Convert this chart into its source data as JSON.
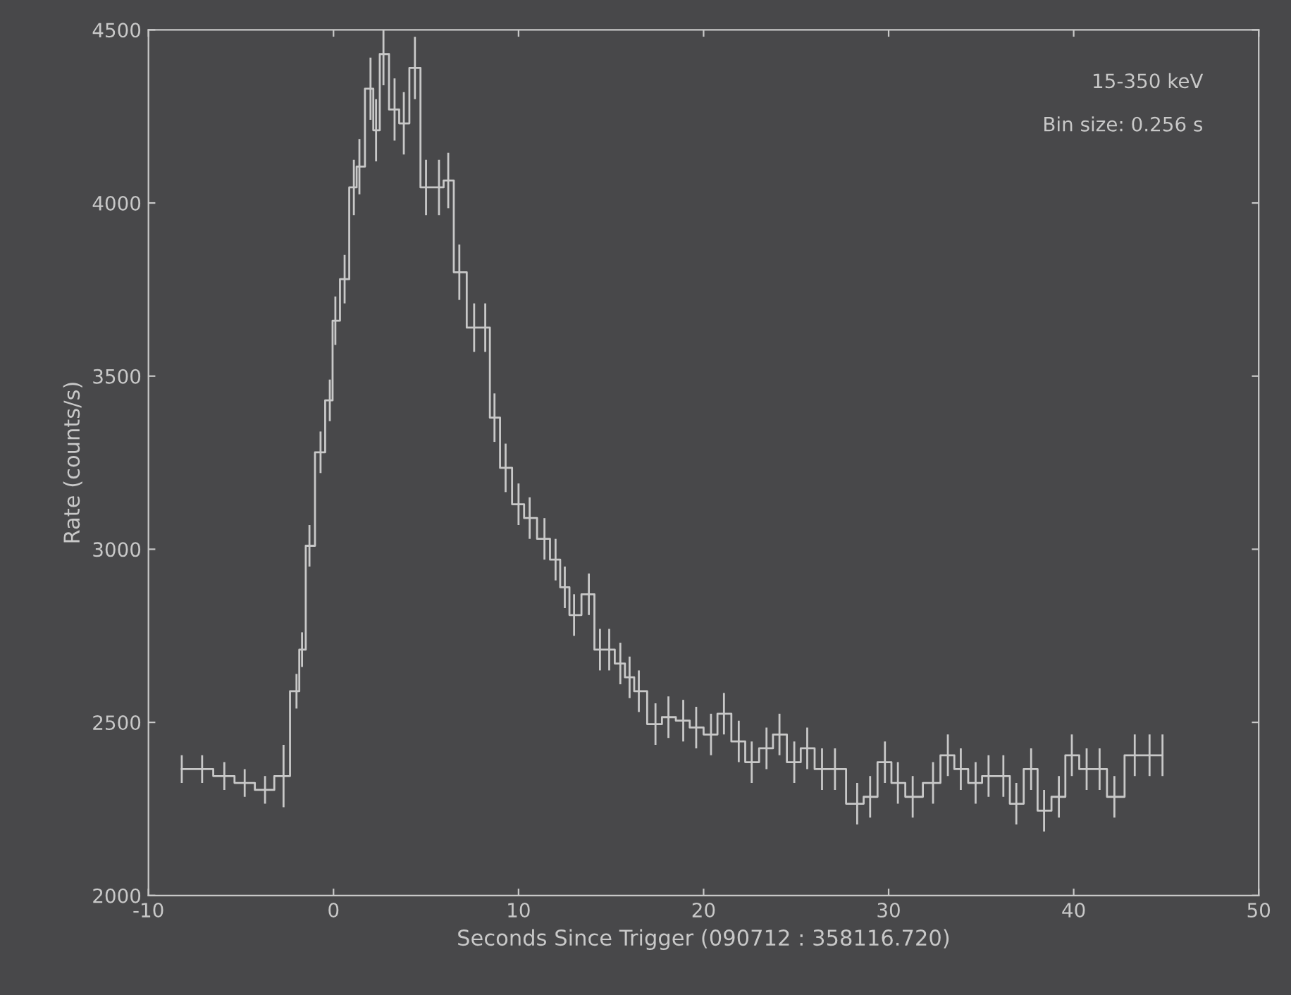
{
  "chart_data": {
    "type": "step",
    "xlabel": "Seconds Since Trigger (090712 : 358116.720)",
    "ylabel": "Rate (counts/s)",
    "annotations": [
      "15-350 keV",
      "Bin size: 0.256 s"
    ],
    "xlim": [
      -10,
      50
    ],
    "xticks": [
      -10,
      0,
      10,
      20,
      30,
      40,
      50
    ],
    "ylim": [
      2000,
      4500
    ],
    "yticks": [
      2000,
      2500,
      3000,
      3500,
      4000,
      4500
    ],
    "grid": false,
    "series": [
      {
        "color": "#c8c8c8",
        "x": [
          -8.2,
          -7.1,
          -5.9,
          -4.8,
          -3.7,
          -2.7,
          -2.0,
          -1.7,
          -1.3,
          -0.7,
          -0.2,
          0.1,
          0.6,
          1.1,
          1.4,
          2.0,
          2.3,
          2.7,
          3.3,
          3.8,
          4.4,
          5.0,
          5.7,
          6.2,
          6.8,
          7.6,
          8.2,
          8.7,
          9.3,
          10.0,
          10.6,
          11.4,
          12.0,
          12.5,
          13.0,
          13.8,
          14.4,
          14.9,
          15.5,
          16.0,
          16.5,
          17.4,
          18.1,
          18.9,
          19.6,
          20.4,
          21.1,
          21.9,
          22.6,
          23.4,
          24.1,
          24.9,
          25.6,
          26.4,
          27.1,
          28.3,
          29.0,
          29.8,
          30.5,
          31.3,
          32.4,
          33.2,
          33.9,
          34.7,
          35.4,
          36.2,
          36.9,
          37.7,
          38.4,
          39.2,
          39.9,
          40.7,
          41.4,
          42.2,
          43.3,
          44.1,
          44.8
        ],
        "values": [
          2365,
          2365,
          2345,
          2325,
          2305,
          2345,
          2590,
          2710,
          3010,
          3280,
          3430,
          3660,
          3780,
          4045,
          4105,
          4330,
          4210,
          4430,
          4270,
          4230,
          4390,
          4045,
          4045,
          4065,
          3800,
          3640,
          3640,
          3380,
          3235,
          3130,
          3090,
          3030,
          2970,
          2890,
          2810,
          2870,
          2710,
          2710,
          2670,
          2630,
          2590,
          2495,
          2515,
          2505,
          2485,
          2465,
          2525,
          2445,
          2385,
          2425,
          2465,
          2385,
          2425,
          2365,
          2365,
          2265,
          2285,
          2385,
          2325,
          2285,
          2325,
          2405,
          2365,
          2325,
          2345,
          2345,
          2265,
          2365,
          2245,
          2285,
          2405,
          2365,
          2365,
          2285,
          2405,
          2405,
          2405
        ],
        "errors": [
          40,
          40,
          40,
          40,
          40,
          90,
          50,
          50,
          60,
          60,
          60,
          70,
          70,
          80,
          80,
          90,
          90,
          90,
          90,
          90,
          90,
          80,
          80,
          80,
          80,
          70,
          70,
          70,
          70,
          60,
          60,
          60,
          60,
          60,
          60,
          60,
          60,
          60,
          60,
          60,
          60,
          60,
          60,
          60,
          60,
          60,
          60,
          60,
          60,
          60,
          60,
          60,
          60,
          60,
          60,
          60,
          60,
          60,
          60,
          60,
          60,
          60,
          60,
          60,
          60,
          60,
          60,
          60,
          60,
          60,
          60,
          60,
          60,
          60,
          60,
          60,
          60
        ]
      }
    ]
  }
}
